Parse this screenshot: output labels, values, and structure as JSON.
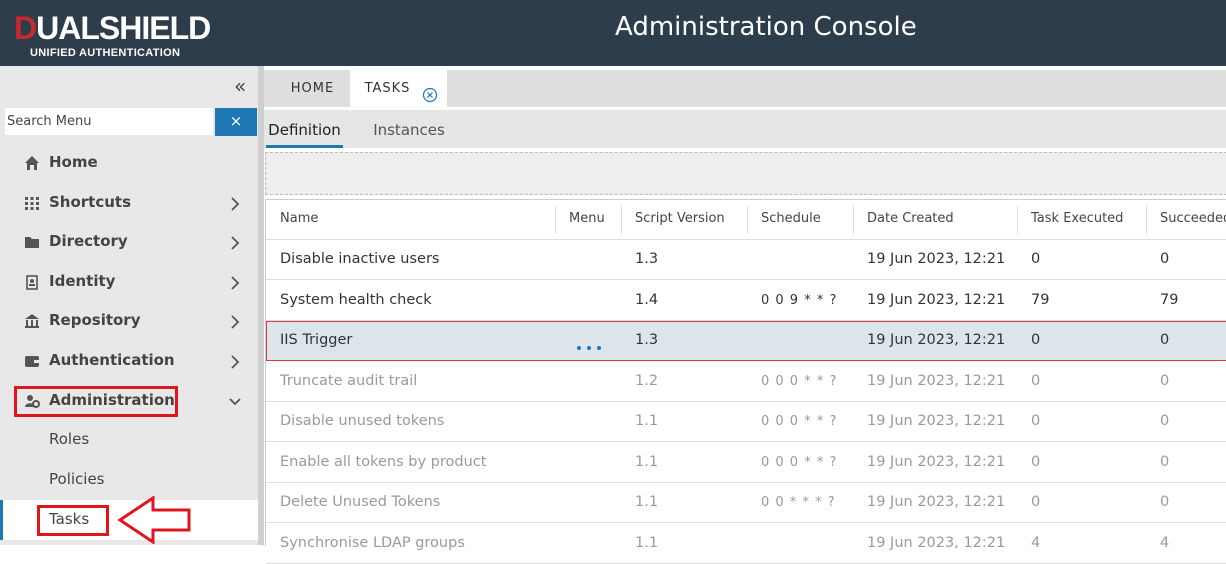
{
  "header": {
    "brand": "DUALSHIELD",
    "tagline": "UNIFIED AUTHENTICATION",
    "title": "Administration Console"
  },
  "sidebar": {
    "search_placeholder": "Search Menu",
    "menu": [
      {
        "label": "Home",
        "icon": "home"
      },
      {
        "label": "Shortcuts",
        "icon": "grid",
        "children": true
      },
      {
        "label": "Directory",
        "icon": "folder",
        "children": true
      },
      {
        "label": "Identity",
        "icon": "badge",
        "children": true
      },
      {
        "label": "Repository",
        "icon": "bank",
        "children": true
      },
      {
        "label": "Authentication",
        "icon": "wallet",
        "children": true
      },
      {
        "label": "Administration",
        "icon": "admin",
        "children": true,
        "expanded": true,
        "highlighted": true
      }
    ],
    "submenu": [
      {
        "label": "Roles"
      },
      {
        "label": "Policies"
      },
      {
        "label": "Tasks",
        "selected": true,
        "highlighted": true
      }
    ]
  },
  "tabs": {
    "items": [
      "HOME",
      "TASKS"
    ],
    "active": 1
  },
  "subtabs": {
    "items": [
      "Definition",
      "Instances"
    ],
    "active": 0
  },
  "table": {
    "columns": [
      "Name",
      "Menu",
      "Script Version",
      "Schedule",
      "Date Created",
      "Task Executed",
      "Succeeded"
    ],
    "rows": [
      {
        "name": "Disable inactive users",
        "version": "1.3",
        "date": "19 Jun 2023, 12:21:...",
        "executed": 0,
        "succeeded": 0
      },
      {
        "name": "System health check",
        "version": "1.4",
        "schedule": "0 0 9 * * ?",
        "date": "19 Jun 2023, 12:21:...",
        "executed": 79,
        "succeeded": 79
      },
      {
        "name": "IIS Trigger",
        "menu": true,
        "selected": true,
        "version": "1.3",
        "date": "19 Jun 2023, 12:21:...",
        "executed": 0,
        "succeeded": 0
      },
      {
        "name": "Truncate audit trail",
        "disabled": true,
        "version": "1.2",
        "schedule": "0 0 0 * * ?",
        "date": "19 Jun 2023, 12:21:...",
        "executed": 0,
        "succeeded": 0
      },
      {
        "name": "Disable unused tokens",
        "disabled": true,
        "version": "1.1",
        "schedule": "0 0 0 * * ?",
        "date": "19 Jun 2023, 12:21:...",
        "executed": 0,
        "succeeded": 0
      },
      {
        "name": "Enable all tokens by product",
        "disabled": true,
        "version": "1.1",
        "schedule": "0 0 0 * * ?",
        "date": "19 Jun 2023, 12:21:...",
        "executed": 0,
        "succeeded": 0
      },
      {
        "name": "Delete Unused Tokens",
        "disabled": true,
        "version": "1.1",
        "schedule": "0 0 * * * ?",
        "date": "19 Jun 2023, 12:21:...",
        "executed": 0,
        "succeeded": 0
      },
      {
        "name": "Synchronise LDAP groups",
        "disabled": true,
        "version": "1.1",
        "date": "19 Jun 2023, 12:21:...",
        "executed": 4,
        "succeeded": 4
      }
    ]
  }
}
